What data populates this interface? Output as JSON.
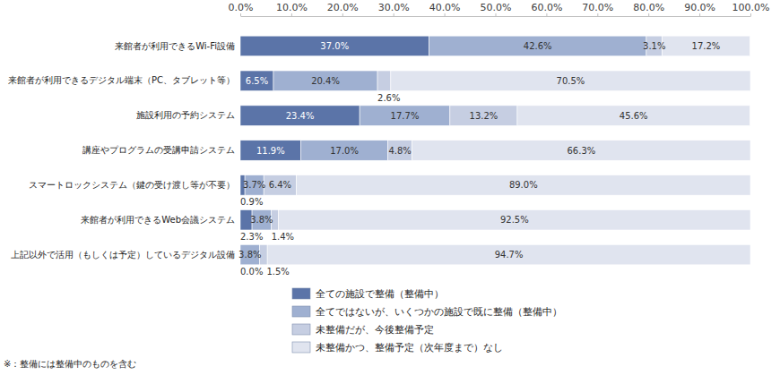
{
  "chart_data": {
    "type": "bar",
    "orientation": "horizontal",
    "stacked": true,
    "data_labels": true,
    "grid": false,
    "legend": "bottom",
    "categories": [
      "来館者が利用できるWi-Fi設備",
      "来館者が利用できるデジタル端末（PC、タブレット等）",
      "施設利用の予約システム",
      "講座やプログラムの受講申請システム",
      "スマートロックシステム（鍵の受け渡し等が不要）",
      "来館者が利用できるWeb会議システム",
      "上記以外で活用（もしくは予定）しているデジタル設備"
    ],
    "series": [
      {
        "name": "全ての施設で整備（整備中）",
        "color": "#5b74a8",
        "values": [
          37.0,
          6.5,
          23.4,
          11.9,
          0.9,
          2.3,
          0.0
        ],
        "value_labels": [
          "37.0%",
          "6.5%",
          "23.4%",
          "11.9%",
          "0.9%",
          "2.3%",
          "0.0%"
        ]
      },
      {
        "name": "全てではないが、いくつかの施設で既に整備（整備中）",
        "color": "#9fb0d1",
        "values": [
          42.6,
          20.4,
          17.7,
          17.0,
          3.7,
          3.8,
          3.8
        ],
        "value_labels": [
          "42.6%",
          "20.4%",
          "17.7%",
          "17.0%",
          "3.7%",
          "3.8%",
          "3.8%"
        ]
      },
      {
        "name": "未整備だが、今後整備予定",
        "color": "#c6cee2",
        "values": [
          3.1,
          2.6,
          13.2,
          4.8,
          6.4,
          1.4,
          1.5
        ],
        "value_labels": [
          "3.1%",
          "2.6%",
          "13.2%",
          "4.8%",
          "6.4%",
          "1.4%",
          "1.5%"
        ]
      },
      {
        "name": "未整備かつ、整備予定（次年度まで）なし",
        "color": "#e0e4ef",
        "values": [
          17.2,
          70.5,
          45.6,
          66.3,
          89.0,
          92.5,
          94.7
        ],
        "value_labels": [
          "17.2%",
          "70.5%",
          "45.6%",
          "66.3%",
          "89.0%",
          "92.5%",
          "94.7%"
        ]
      }
    ],
    "xlim": [
      0,
      100
    ],
    "xticks": [
      {
        "value": 0,
        "label": "0.0%"
      },
      {
        "value": 10,
        "label": "10.0%"
      },
      {
        "value": 20,
        "label": "20.0%"
      },
      {
        "value": 30,
        "label": "30.0%"
      },
      {
        "value": 40,
        "label": "40.0%"
      },
      {
        "value": 50,
        "label": "50.0%"
      },
      {
        "value": 60,
        "label": "60.0%"
      },
      {
        "value": 70,
        "label": "70.0%"
      },
      {
        "value": 80,
        "label": "80.0%"
      },
      {
        "value": 90,
        "label": "90.0%"
      },
      {
        "value": 100,
        "label": "100.0%"
      }
    ],
    "annotations": [
      "※：整備には整備中のものを含む"
    ]
  }
}
